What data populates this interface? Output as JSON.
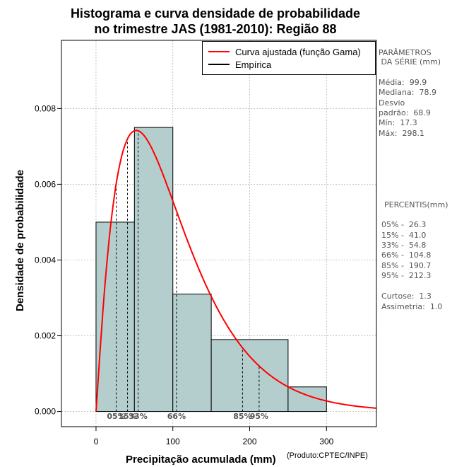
{
  "title_line1": "Histograma e curva densidade de probabilidade",
  "title_line2": "no trimestre JAS (1981-2010): Região 88",
  "legend": {
    "fitted": "Curva ajustada (função Gama)",
    "empirical": "Empírica"
  },
  "side": {
    "params_header1": "PARÂMETROS",
    "params_header2": " DA SÉRIE (mm)",
    "media": "Média:  99.9",
    "mediana": "Mediana:  78.9",
    "desvio1": "Desvio",
    "desvio2": "padrão:  68.9",
    "min": "Mín:  17.3",
    "max": "Máx:  298.1",
    "percentis_header": "PERCENTIS(mm)",
    "p05": "05% -  26.3",
    "p15": "15% -  41.0",
    "p33": "33% -  54.8",
    "p66": "66% -  104.8",
    "p85": "85% -  190.7",
    "p95": "95% -  212.3",
    "curtose": "Curtose:  1.3",
    "assimetria": "Assimetria:  1.0"
  },
  "xlabel": "Precipitação acumulada (mm)",
  "credit": "(Produto:CPTEC/INPE)",
  "ylabel": "Densidade de probabilidade",
  "colors": {
    "bar": "#b4cece",
    "curve": "#ff0000",
    "grid": "#b4b4b4"
  },
  "chart_data": {
    "type": "bar",
    "title": "Histograma e curva densidade de probabilidade no trimestre JAS (1981-2010): Região 88",
    "xlabel": "Precipitação acumulada (mm)",
    "ylabel": "Densidade de probabilidade",
    "xlim": [
      -45,
      365
    ],
    "ylim": [
      -0.0004,
      0.0098
    ],
    "xticks": [
      0,
      100,
      200,
      300
    ],
    "yticks": [
      0.0,
      0.002,
      0.004,
      0.006,
      0.008
    ],
    "ytick_labels": [
      "0.000",
      "0.002",
      "0.004",
      "0.006",
      "0.008"
    ],
    "histogram": [
      {
        "x0": 0,
        "x1": 50,
        "density": 0.005
      },
      {
        "x0": 50,
        "x1": 100,
        "density": 0.0075
      },
      {
        "x0": 100,
        "x1": 150,
        "density": 0.0031
      },
      {
        "x0": 150,
        "x1": 250,
        "density": 0.0019
      },
      {
        "x0": 250,
        "x1": 300,
        "density": 0.00065
      }
    ],
    "gamma_fit": {
      "shape": 2.1,
      "scale": 47.6
    },
    "percentiles": [
      {
        "label": "05%",
        "value": 26.3
      },
      {
        "label": "15%",
        "value": 41.0
      },
      {
        "label": "33%",
        "value": 54.8
      },
      {
        "label": "66%",
        "value": 104.8
      },
      {
        "label": "85%",
        "value": 190.7
      },
      {
        "label": "95%",
        "value": 212.3
      }
    ]
  }
}
